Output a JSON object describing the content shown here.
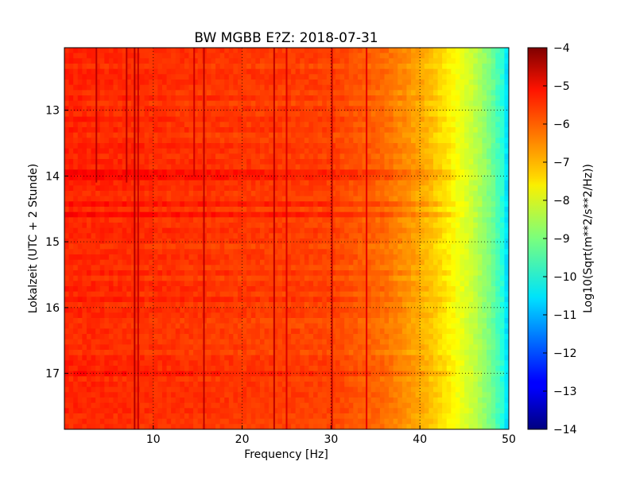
{
  "chart_data": {
    "type": "heatmap",
    "title": "BW MGBB E?Z: 2018-07-31",
    "xlabel": "Frequency [Hz]",
    "ylabel": "Lokalzeit (UTC + 2 Stunde)",
    "xlim": [
      0,
      50
    ],
    "ylim": [
      17.85,
      12.05
    ],
    "y_inverted": true,
    "xticks": [
      10,
      20,
      30,
      40,
      50
    ],
    "yticks": [
      13,
      14,
      15,
      16,
      17
    ],
    "grid": true,
    "colorbar": {
      "label": "Log10(Sqrt(m**2/s**2/Hz))",
      "colormap": "jet",
      "vmin": -14,
      "vmax": -4,
      "ticks": [
        -4,
        -5,
        -6,
        -7,
        -8,
        -9,
        -10,
        -11,
        -12,
        -13,
        -14
      ]
    },
    "baseline_level": -5.6,
    "rolloff": [
      {
        "frequency": 30,
        "level": -5.9
      },
      {
        "frequency": 36,
        "level": -6.3
      },
      {
        "frequency": 40,
        "level": -6.9
      },
      {
        "frequency": 42,
        "level": -7.3
      },
      {
        "frequency": 44,
        "level": -7.8
      },
      {
        "frequency": 46,
        "level": -8.3
      },
      {
        "frequency": 48,
        "level": -9.1
      },
      {
        "frequency": 49.5,
        "level": -10.0
      }
    ],
    "spectral_lines": [
      {
        "frequency": 3.6,
        "level": -4.6,
        "hours": [
          12.05,
          14.1
        ]
      },
      {
        "frequency": 7.0,
        "level": -4.6,
        "hours": [
          12.05,
          14.1
        ]
      },
      {
        "frequency": 7.9,
        "level": -4.5,
        "hours": [
          12.05,
          17.85
        ]
      },
      {
        "frequency": 8.3,
        "level": -4.7,
        "hours": [
          12.05,
          17.85
        ]
      },
      {
        "frequency": 14.6,
        "level": -4.8,
        "hours": [
          12.05,
          14.0
        ]
      },
      {
        "frequency": 15.7,
        "level": -4.6,
        "hours": [
          12.05,
          17.85
        ]
      },
      {
        "frequency": 23.6,
        "level": -4.6,
        "hours": [
          12.05,
          17.85
        ]
      },
      {
        "frequency": 25.0,
        "level": -4.9,
        "hours": [
          12.05,
          17.85
        ]
      },
      {
        "frequency": 30.1,
        "level": -4.6,
        "hours": [
          12.05,
          17.85
        ]
      },
      {
        "frequency": 34.0,
        "level": -5.0,
        "hours": [
          12.05,
          17.85
        ]
      }
    ]
  }
}
